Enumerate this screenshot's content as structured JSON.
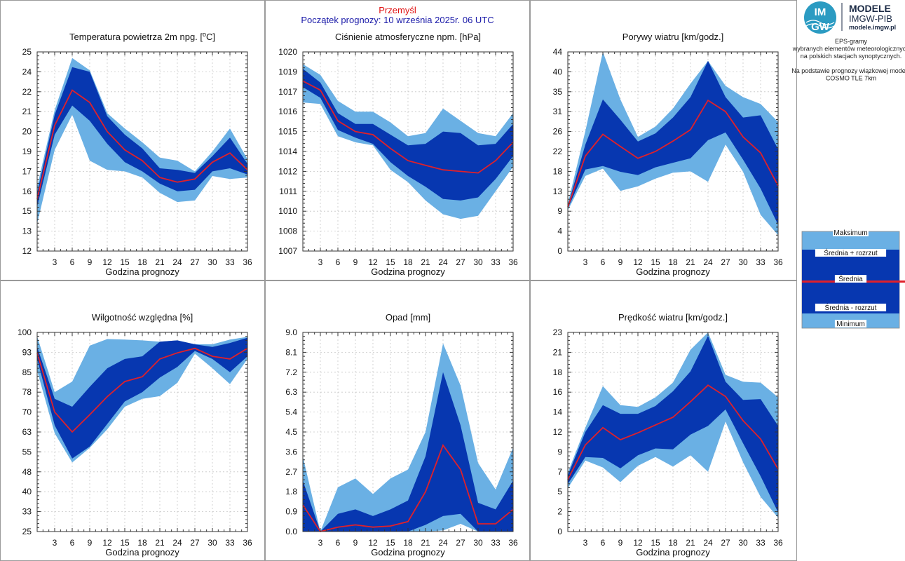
{
  "header": {
    "station": "Przemyśl",
    "forecast_start": "Początek prognozy: 10 września 2025r. 06 UTC"
  },
  "logo": {
    "mark_top": "IM",
    "mark_bottom": "GW",
    "title": "MODELE",
    "subtitle": "IMGW-PIB",
    "url": "modele.imgw.pl"
  },
  "side_info": {
    "lines": [
      "EPS-gramy",
      "wybranych elementów meteorologicznych",
      "na polskich stacjach  synoptycznych.",
      "",
      "Na podstawie prognozy wiązkowej modelu",
      "COSMO TLE 7km"
    ]
  },
  "legend": {
    "items": [
      "Maksimum",
      "Średnia + rozrzut",
      "Średnia",
      "Średnia - rozrzut",
      "Minimum"
    ]
  },
  "colors": {
    "outer_band": "#6ab0e4",
    "inner_band": "#0737b0",
    "mean_line": "#e0202a"
  },
  "chart_data": [
    {
      "id": "temp",
      "type": "area",
      "title": "Temperatura powietrza 2m npg. [°C]",
      "title_main": "Temperatura powietrza 2m npg. [",
      "title_sup": "o",
      "title_end": "C]",
      "xlabel": "Godzina prognozy",
      "ylim": [
        12,
        25
      ],
      "yticks": [
        "12",
        "13",
        "15",
        "16",
        "17",
        "19",
        "20",
        "21",
        "22",
        "24",
        "25"
      ],
      "xticks": [
        "3",
        "6",
        "9",
        "12",
        "15",
        "18",
        "21",
        "24",
        "27",
        "30",
        "33",
        "36"
      ],
      "x": [
        0,
        3,
        6,
        9,
        12,
        15,
        18,
        21,
        24,
        27,
        30,
        33,
        36
      ],
      "series": [
        {
          "name": "Maksimum",
          "values": [
            16.2,
            21.2,
            24.6,
            23.8,
            21.0,
            20.0,
            19.1,
            18.1,
            17.9,
            17.2,
            18.5,
            20.0,
            18.0
          ]
        },
        {
          "name": "Średnia + rozrzut",
          "values": [
            15.8,
            20.9,
            24.0,
            23.7,
            20.8,
            19.6,
            18.7,
            17.4,
            17.3,
            17.1,
            18.2,
            19.4,
            17.7
          ]
        },
        {
          "name": "Średnia",
          "values": [
            15.4,
            20.2,
            22.5,
            21.7,
            19.8,
            18.6,
            17.9,
            16.8,
            16.5,
            16.7,
            17.8,
            18.4,
            17.3
          ]
        },
        {
          "name": "Średnia - rozrzut",
          "values": [
            14.9,
            19.6,
            21.5,
            20.5,
            19.0,
            17.8,
            17.2,
            16.4,
            15.9,
            16.0,
            17.2,
            17.4,
            17.0
          ]
        },
        {
          "name": "Minimum",
          "values": [
            13.8,
            18.6,
            20.9,
            17.9,
            17.3,
            17.2,
            16.8,
            15.8,
            15.2,
            15.3,
            16.9,
            16.7,
            16.8
          ]
        }
      ]
    },
    {
      "id": "pressure",
      "type": "area",
      "title": "Ciśnienie atmosferyczne npm. [hPa]",
      "xlabel": "Godzina prognozy",
      "ylim": [
        1007,
        1020
      ],
      "yticks": [
        "1007",
        "1008",
        "1010",
        "1011",
        "1012",
        "1014",
        "1015",
        "1016",
        "1017",
        "1019",
        "1020"
      ],
      "xticks": [
        "3",
        "6",
        "9",
        "12",
        "15",
        "18",
        "21",
        "24",
        "27",
        "30",
        "33",
        "36"
      ],
      "x": [
        0,
        3,
        6,
        9,
        12,
        15,
        18,
        21,
        24,
        27,
        30,
        33,
        36
      ],
      "series": [
        {
          "name": "Maksimum",
          "values": [
            1019.2,
            1018.5,
            1016.8,
            1016.1,
            1016.1,
            1015.4,
            1014.5,
            1014.7,
            1016.3,
            1015.5,
            1014.7,
            1014.5,
            1016.0
          ]
        },
        {
          "name": "Średnia + rozrzut",
          "values": [
            1018.9,
            1018.0,
            1016.0,
            1015.3,
            1015.3,
            1014.6,
            1013.9,
            1014.0,
            1014.8,
            1014.7,
            1013.9,
            1014.0,
            1015.3
          ]
        },
        {
          "name": "Średnia",
          "values": [
            1018.1,
            1017.5,
            1015.5,
            1014.8,
            1014.6,
            1013.7,
            1012.9,
            1012.6,
            1012.3,
            1012.2,
            1012.1,
            1012.9,
            1014.1
          ]
        },
        {
          "name": "Średnia - rozrzut",
          "values": [
            1017.7,
            1017.0,
            1014.9,
            1014.4,
            1014.0,
            1012.8,
            1011.9,
            1011.2,
            1010.4,
            1010.3,
            1010.5,
            1011.7,
            1013.2
          ]
        },
        {
          "name": "Minimum",
          "values": [
            1016.7,
            1016.6,
            1014.5,
            1014.1,
            1013.9,
            1012.3,
            1011.5,
            1010.3,
            1009.4,
            1009.1,
            1009.3,
            1010.9,
            1012.5
          ]
        }
      ]
    },
    {
      "id": "gusts",
      "type": "area",
      "title": "Porywy wiatru [km/godz.]",
      "xlabel": "Godzina prognozy",
      "ylim": [
        0,
        44
      ],
      "yticks": [
        "0",
        "4",
        "9",
        "13",
        "18",
        "22",
        "26",
        "31",
        "35",
        "40",
        "44"
      ],
      "xticks": [
        "3",
        "6",
        "9",
        "12",
        "15",
        "18",
        "21",
        "24",
        "27",
        "30",
        "33",
        "36"
      ],
      "x": [
        0,
        3,
        6,
        9,
        12,
        15,
        18,
        21,
        24,
        27,
        30,
        33,
        36
      ],
      "series": [
        {
          "name": "Maksimum",
          "values": [
            10.5,
            26.5,
            44.0,
            33.5,
            25.2,
            27.5,
            31.5,
            37.0,
            42.0,
            36.5,
            34.0,
            32.5,
            28.5
          ]
        },
        {
          "name": "Średnia + rozrzut",
          "values": [
            10.0,
            23.5,
            33.5,
            29.0,
            24.2,
            26.0,
            29.5,
            34.0,
            42.0,
            34.0,
            29.5,
            30.0,
            22.5
          ]
        },
        {
          "name": "Średnia",
          "values": [
            9.7,
            21.0,
            25.8,
            23.1,
            20.5,
            22.0,
            24.3,
            26.8,
            33.3,
            30.8,
            25.2,
            21.7,
            14.4
          ]
        },
        {
          "name": "Średnia - rozrzut",
          "values": [
            9.4,
            18.0,
            18.8,
            17.5,
            16.8,
            18.5,
            19.5,
            20.5,
            24.5,
            26.2,
            20.2,
            13.8,
            5.8
          ]
        },
        {
          "name": "Minimum",
          "values": [
            9.0,
            16.6,
            18.2,
            13.3,
            14.3,
            16.0,
            17.3,
            17.6,
            15.3,
            23.5,
            17.5,
            8.0,
            3.5
          ]
        }
      ]
    },
    {
      "id": "humidity",
      "type": "area",
      "title": "Wilgotność względna [%]",
      "xlabel": "Godzina prognozy",
      "ylim": [
        25,
        100
      ],
      "yticks": [
        "25",
        "33",
        "40",
        "48",
        "55",
        "63",
        "70",
        "78",
        "85",
        "93",
        "100"
      ],
      "xticks": [
        "3",
        "6",
        "9",
        "12",
        "15",
        "18",
        "21",
        "24",
        "27",
        "30",
        "33",
        "36"
      ],
      "x": [
        0,
        3,
        6,
        9,
        12,
        15,
        18,
        21,
        24,
        27,
        30,
        33,
        36
      ],
      "series": [
        {
          "name": "Maksimum",
          "values": [
            98.5,
            77.5,
            81.5,
            95.0,
            97.5,
            97.3,
            97.0,
            96.5,
            97.0,
            95.5,
            95.5,
            97.3,
            98.3
          ]
        },
        {
          "name": "Średnia + rozrzut",
          "values": [
            94.5,
            75.0,
            72.0,
            79.5,
            86.5,
            90.0,
            91.0,
            96.5,
            97.0,
            95.5,
            94.5,
            96.0,
            98.0
          ]
        },
        {
          "name": "Średnia",
          "values": [
            92.3,
            70.0,
            62.5,
            69.0,
            75.8,
            81.5,
            83.3,
            90.0,
            92.3,
            94.0,
            91.0,
            90.0,
            94.0
          ]
        },
        {
          "name": "Średnia - rozrzut",
          "values": [
            90.0,
            65.0,
            52.5,
            57.0,
            65.5,
            74.0,
            77.5,
            83.0,
            87.0,
            93.0,
            90.0,
            85.0,
            91.0
          ]
        },
        {
          "name": "Minimum",
          "values": [
            85.5,
            62.0,
            51.0,
            56.5,
            63.5,
            72.0,
            75.0,
            76.0,
            81.0,
            92.0,
            86.5,
            80.5,
            90.0
          ]
        }
      ]
    },
    {
      "id": "precip",
      "type": "area",
      "title": "Opad [mm]",
      "xlabel": "Godzina prognozy",
      "ylim": [
        0,
        9
      ],
      "yticks": [
        "0.0",
        "0.9",
        "1.8",
        "2.7",
        "3.6",
        "4.5",
        "5.4",
        "6.3",
        "7.2",
        "8.1",
        "9.0"
      ],
      "xticks": [
        "3",
        "6",
        "9",
        "12",
        "15",
        "18",
        "21",
        "24",
        "27",
        "30",
        "33",
        "36"
      ],
      "x": [
        0,
        3,
        6,
        9,
        12,
        15,
        18,
        21,
        24,
        27,
        30,
        33,
        36
      ],
      "series": [
        {
          "name": "Maksimum",
          "values": [
            3.4,
            0.0,
            2.0,
            2.4,
            1.7,
            2.4,
            2.8,
            4.5,
            8.5,
            6.6,
            3.1,
            1.9,
            3.8
          ]
        },
        {
          "name": "Średnia + rozrzut",
          "values": [
            2.3,
            0.0,
            0.8,
            1.0,
            0.7,
            1.0,
            1.4,
            3.4,
            7.2,
            4.8,
            1.3,
            1.0,
            2.3
          ]
        },
        {
          "name": "Średnia",
          "values": [
            1.2,
            0.0,
            0.2,
            0.3,
            0.2,
            0.25,
            0.45,
            1.8,
            3.9,
            2.8,
            0.35,
            0.35,
            1.0
          ]
        },
        {
          "name": "Średnia - rozrzut",
          "values": [
            0.0,
            0.0,
            0.0,
            0.0,
            0.0,
            0.0,
            0.0,
            0.3,
            0.7,
            0.8,
            0.0,
            0.0,
            0.0
          ]
        },
        {
          "name": "Minimum",
          "values": [
            0.0,
            0.0,
            0.0,
            0.0,
            0.0,
            0.0,
            0.0,
            0.0,
            0.05,
            0.35,
            0.0,
            0.0,
            0.0
          ]
        }
      ]
    },
    {
      "id": "wind",
      "type": "area",
      "title": "Prędkość wiatru [km/godz.]",
      "xlabel": "Godzina prognozy",
      "ylim": [
        0,
        23
      ],
      "yticks": [
        "0",
        "2",
        "5",
        "7",
        "9",
        "12",
        "14",
        "16",
        "18",
        "21",
        "23"
      ],
      "xticks": [
        "3",
        "6",
        "9",
        "12",
        "15",
        "18",
        "21",
        "24",
        "27",
        "30",
        "33",
        "36"
      ],
      "x": [
        0,
        3,
        6,
        9,
        12,
        15,
        18,
        21,
        24,
        27,
        30,
        33,
        36
      ],
      "series": [
        {
          "name": "Maksimum",
          "values": [
            6.8,
            12.0,
            16.8,
            14.6,
            14.4,
            15.5,
            17.2,
            21.0,
            23.0,
            18.1,
            17.3,
            17.2,
            15.5
          ]
        },
        {
          "name": "Średnia + rozrzut",
          "values": [
            6.5,
            11.5,
            14.6,
            13.6,
            13.6,
            14.5,
            16.2,
            18.5,
            22.6,
            17.3,
            15.2,
            15.3,
            12.2
          ]
        },
        {
          "name": "Średnia",
          "values": [
            6.0,
            10.0,
            12.0,
            10.6,
            11.4,
            12.3,
            13.2,
            15.0,
            16.9,
            15.6,
            12.8,
            10.7,
            7.2
          ]
        },
        {
          "name": "Średnia - rozrzut",
          "values": [
            5.5,
            8.6,
            8.5,
            7.3,
            8.8,
            9.6,
            9.5,
            11.2,
            12.2,
            14.1,
            10.2,
            6.4,
            2.2
          ]
        },
        {
          "name": "Minimum",
          "values": [
            5.0,
            8.2,
            7.4,
            5.7,
            7.6,
            8.6,
            7.5,
            8.8,
            6.9,
            12.7,
            8.0,
            4.0,
            1.6
          ]
        }
      ]
    }
  ]
}
